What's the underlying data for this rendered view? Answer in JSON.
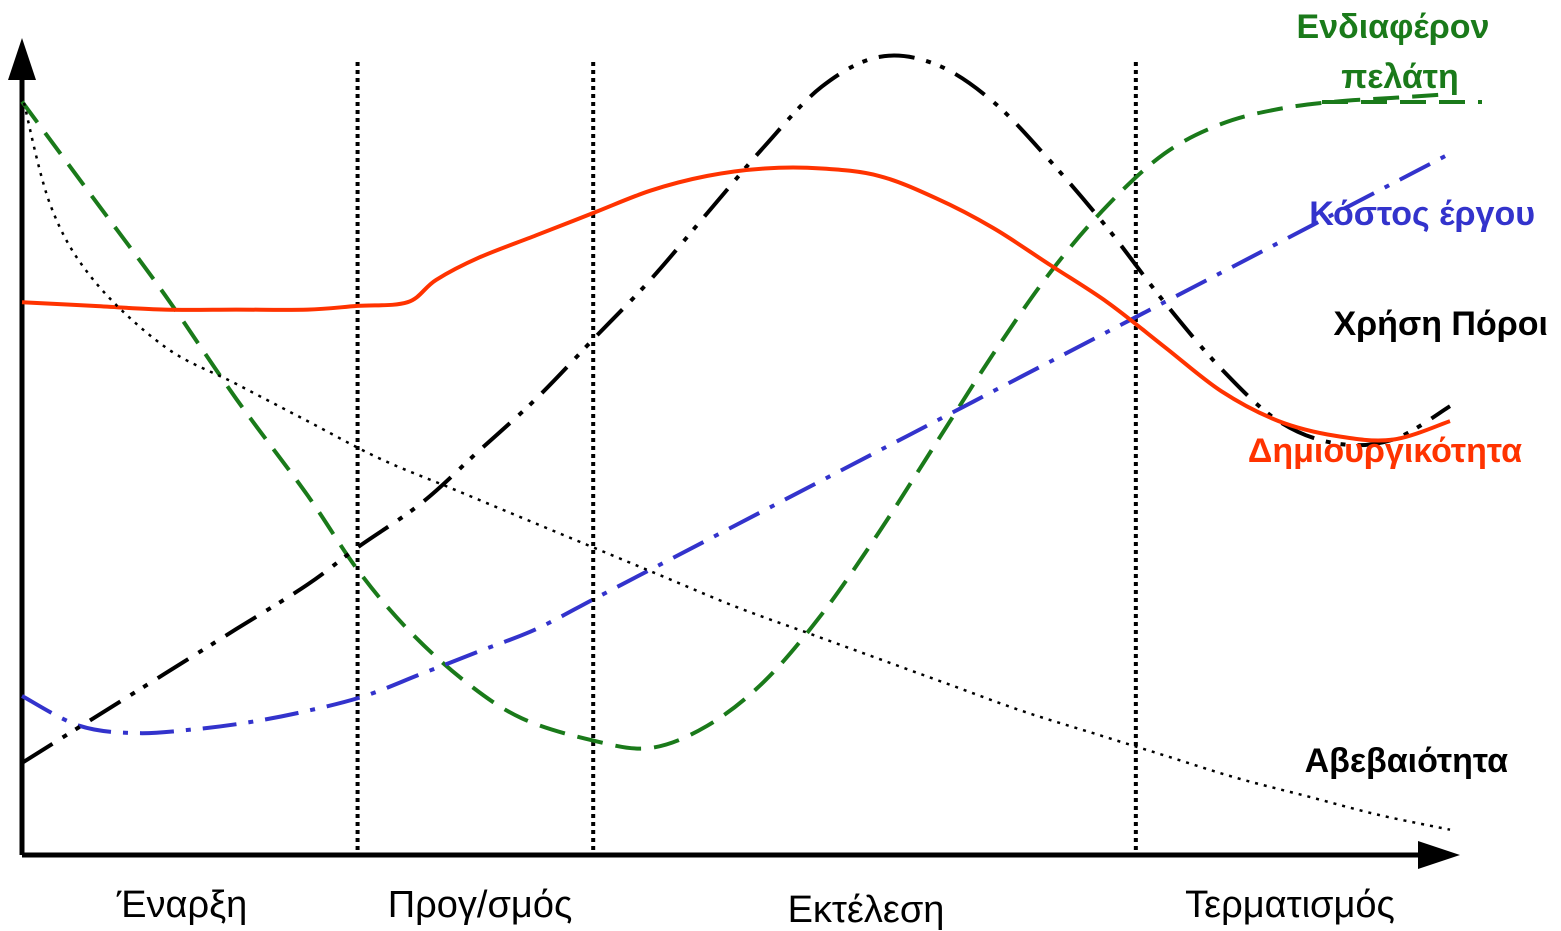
{
  "chart_data": {
    "type": "line",
    "title": "",
    "xlabel": "",
    "ylabel": "",
    "x_range": [
      0,
      100
    ],
    "y_range": [
      0,
      100
    ],
    "grid": false,
    "legend": "inline-right",
    "phases": [
      "Έναρξη",
      "Προγ/σμός",
      "Εκτέλεση",
      "Τερματισμός"
    ],
    "phase_boundaries": [
      23.5,
      40,
      78
    ],
    "series": [
      {
        "name": "Ενδιαφέρον πελάτη",
        "color": "#1a7a1a",
        "style": "dashed",
        "x": [
          0,
          5,
          10,
          15,
          20,
          23.5,
          27,
          31,
          35,
          40,
          44,
          48,
          52,
          56,
          60,
          64,
          68,
          72,
          76,
          80,
          84,
          88,
          92,
          96,
          100
        ],
        "y": [
          94,
          81,
          68,
          54,
          41,
          31,
          23,
          16,
          11,
          8,
          7,
          10,
          16,
          25,
          36,
          48,
          60,
          71,
          80,
          87,
          91,
          93,
          94,
          94.5,
          95
        ]
      },
      {
        "name": "Κόστος έργου",
        "color": "#3333cc",
        "style": "dashdot",
        "x": [
          0,
          4,
          8,
          12,
          16,
          20,
          24,
          28,
          32,
          36,
          40,
          44,
          48,
          52,
          56,
          60,
          64,
          68,
          72,
          76,
          80,
          84,
          88,
          92,
          96,
          100
        ],
        "y": [
          14,
          10,
          9,
          9.5,
          10.5,
          12,
          14,
          17,
          20,
          23,
          27,
          31,
          35,
          39,
          43,
          47,
          51,
          55,
          59,
          63,
          67,
          71,
          75,
          79,
          83,
          87
        ]
      },
      {
        "name": "Χρήση Πόροι",
        "color": "#000000",
        "style": "dashdotdot",
        "x": [
          0,
          5,
          10,
          15,
          20,
          23.5,
          28,
          32,
          36,
          40,
          44,
          48,
          52,
          56,
          60,
          64,
          68,
          72,
          76,
          80,
          84,
          88,
          92,
          96,
          100
        ],
        "y": [
          5,
          11,
          17,
          23,
          29,
          34,
          40,
          47,
          54,
          62,
          70,
          79,
          88,
          96,
          100,
          99,
          94,
          86,
          77,
          67,
          58,
          51,
          48,
          48.5,
          53
        ]
      },
      {
        "name": "Δημιουργικότητα",
        "color": "#ff3300",
        "style": "solid",
        "x": [
          0,
          5,
          10,
          15,
          20,
          23.5,
          27,
          29,
          32,
          36,
          40,
          44,
          48,
          52,
          56,
          60,
          64,
          68,
          72,
          76,
          80,
          84,
          88,
          92,
          96,
          100
        ],
        "y": [
          67,
          66.5,
          66,
          66,
          66,
          66.5,
          67,
          70,
          73,
          76,
          79,
          82,
          84,
          85,
          85,
          84,
          81,
          77,
          72,
          67,
          61,
          55,
          51,
          49,
          48.5,
          51
        ]
      },
      {
        "name": "Αβεβαιότητα",
        "color": "#000000",
        "style": "dotted",
        "x": [
          0,
          2,
          5,
          10,
          15,
          20,
          25,
          30,
          35,
          40,
          45,
          50,
          55,
          60,
          65,
          70,
          75,
          80,
          85,
          90,
          95,
          100
        ],
        "y": [
          95,
          80,
          70,
          61,
          56,
          51,
          46,
          42,
          38,
          34,
          30,
          26,
          22.5,
          19,
          15.5,
          12,
          9,
          6,
          3,
          0.5,
          -2,
          -4
        ]
      }
    ]
  }
}
